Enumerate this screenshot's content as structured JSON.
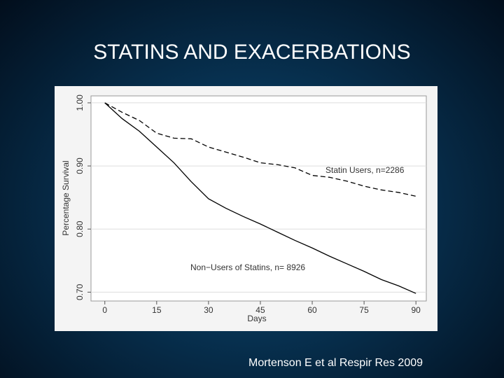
{
  "chart_data": {
    "type": "line",
    "title": "STATINS AND EXACERBATIONS",
    "source": "Mortenson E et al Respir Res 2009",
    "xlabel": "Days",
    "ylabel": "Percentage Survival",
    "x": [
      0,
      5,
      10,
      15,
      20,
      25,
      30,
      35,
      40,
      45,
      50,
      55,
      60,
      65,
      70,
      75,
      80,
      85,
      90
    ],
    "series": [
      {
        "name": "Statin Users, n=2286",
        "color": "#000000",
        "dashed": true,
        "values": [
          1.0,
          0.985,
          0.972,
          0.952,
          0.944,
          0.943,
          0.93,
          0.922,
          0.914,
          0.905,
          0.902,
          0.897,
          0.885,
          0.882,
          0.876,
          0.868,
          0.862,
          0.858,
          0.852
        ]
      },
      {
        "name": "Non−Users of Statins, n= 8926",
        "color": "#000000",
        "dashed": false,
        "values": [
          1.0,
          0.975,
          0.955,
          0.93,
          0.905,
          0.875,
          0.848,
          0.833,
          0.82,
          0.808,
          0.795,
          0.782,
          0.77,
          0.757,
          0.745,
          0.733,
          0.72,
          0.71,
          0.698
        ]
      }
    ],
    "xlim": [
      -4,
      93
    ],
    "xticks": [
      0,
      15,
      30,
      45,
      60,
      75,
      90
    ],
    "ylim": [
      0.686,
      1.011
    ],
    "yticks": [
      {
        "value": 0.7,
        "label": "0.70"
      },
      {
        "value": 0.8,
        "label": "0.80"
      },
      {
        "value": 0.9,
        "label": "0.90"
      },
      {
        "value": 1,
        "label": "1.00"
      }
    ],
    "grid": true
  }
}
